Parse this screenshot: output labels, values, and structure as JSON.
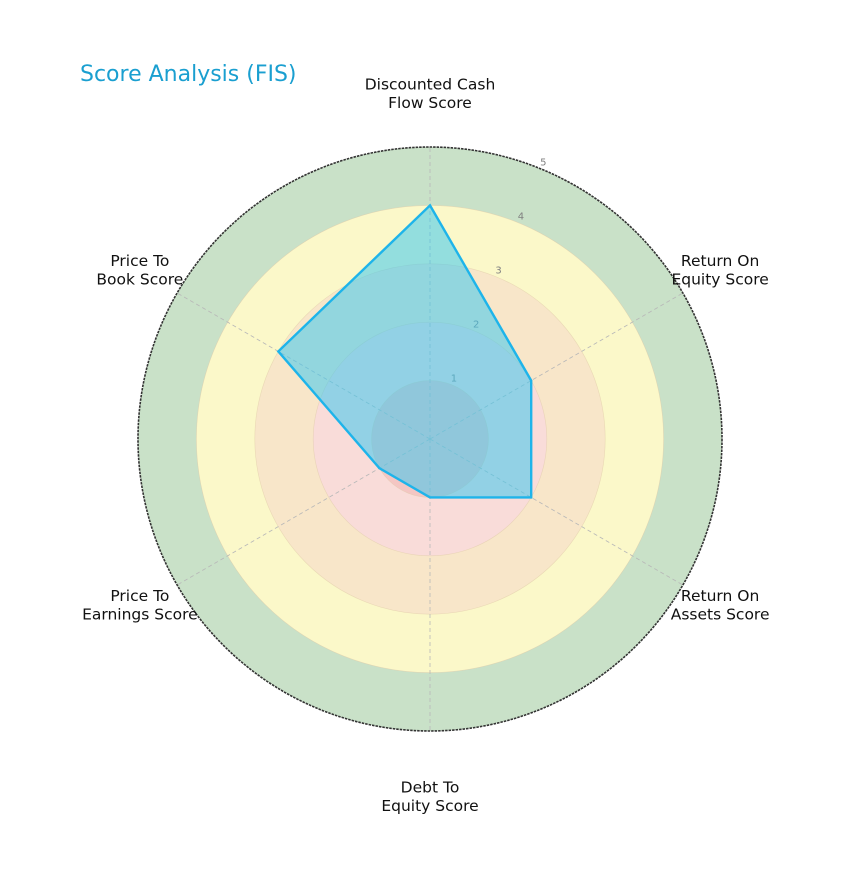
{
  "chart_data": {
    "type": "radar",
    "title": "Score Analysis (FIS)",
    "categories": [
      "Discounted Cash Flow Score",
      "Return On Equity Score",
      "Return On Assets Score",
      "Debt To Equity Score",
      "Price To Earnings Score",
      "Price To Book Score"
    ],
    "label_lines": [
      [
        "Discounted Cash",
        "Flow Score"
      ],
      [
        "Return On",
        "Equity Score"
      ],
      [
        "Return On",
        "Assets Score"
      ],
      [
        "Debt To",
        "Equity Score"
      ],
      [
        "Price To",
        "Earnings Score"
      ],
      [
        "Price To",
        "Book Score"
      ]
    ],
    "series": [
      {
        "name": "FIS",
        "values": [
          4,
          2,
          2,
          1,
          1,
          3
        ]
      }
    ],
    "rlim": [
      0,
      5
    ],
    "rticks": [
      1,
      2,
      3,
      4,
      5
    ],
    "ring_colors": [
      "#f4c6c3",
      "#f9dcd9",
      "#f8e6c9",
      "#fbf8c9",
      "#c9e1c8"
    ],
    "line_color": "#1eb4ea",
    "fill_color": "#3ec8ee",
    "title_color": "#1a9fd0",
    "grid": true
  }
}
